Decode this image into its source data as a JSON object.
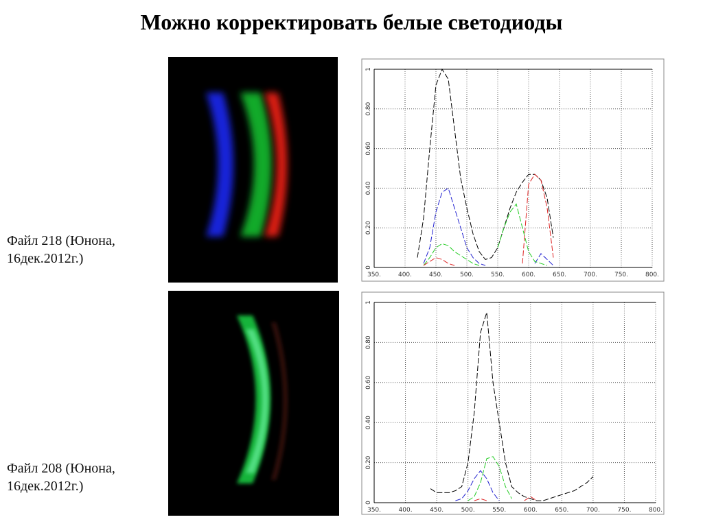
{
  "title": "Можно корректировать белые светодиоды",
  "captions": [
    [
      "Файл 218 (Юнона,",
      "16дек.2012г.)"
    ],
    [
      "Файл 208 (Юнона,",
      "16дек.2012г.)"
    ]
  ],
  "chart_data": [
    {
      "type": "line",
      "grid": true,
      "line_style": "dashed",
      "xlim": [
        350,
        800
      ],
      "ylim": [
        0,
        1
      ],
      "xticks": [
        {
          "value": 350,
          "label": "350."
        },
        {
          "value": 400,
          "label": "400."
        },
        {
          "value": 450,
          "label": "450."
        },
        {
          "value": 500,
          "label": "500."
        },
        {
          "value": 550,
          "label": "550."
        },
        {
          "value": 600,
          "label": "600."
        },
        {
          "value": 650,
          "label": "650."
        },
        {
          "value": 700,
          "label": "700."
        },
        {
          "value": 750,
          "label": "750."
        },
        {
          "value": 800,
          "label": "800."
        }
      ],
      "yticks": [
        0,
        {
          "value": 0.2,
          "label": "0.20"
        },
        {
          "value": 0.4,
          "label": "0.40"
        },
        {
          "value": 0.6,
          "label": "0.60"
        },
        {
          "value": 0.8,
          "label": "0.80"
        },
        1
      ],
      "x": [
        420,
        430,
        440,
        450,
        460,
        470,
        480,
        490,
        500,
        510,
        520,
        530,
        540,
        550,
        560,
        570,
        580,
        590,
        600,
        610,
        620,
        630,
        640
      ],
      "series": [
        {
          "color": "#000000",
          "values": [
            0.05,
            0.25,
            0.6,
            0.92,
            1.0,
            0.95,
            0.7,
            0.45,
            0.3,
            0.17,
            0.08,
            0.04,
            0.05,
            0.1,
            0.2,
            0.3,
            0.38,
            0.43,
            0.47,
            0.47,
            0.44,
            0.35,
            0.15
          ]
        },
        {
          "color": "#1f1fd0",
          "values": [
            null,
            0.02,
            0.1,
            0.28,
            0.38,
            0.4,
            0.3,
            0.2,
            0.1,
            0.05,
            0.02,
            0.01,
            null,
            null,
            null,
            null,
            null,
            null,
            null,
            0.02,
            0.07,
            0.04,
            0.01
          ]
        },
        {
          "color": "#22cc22",
          "values": [
            null,
            0.01,
            0.05,
            0.1,
            0.12,
            0.11,
            0.08,
            0.06,
            0.04,
            0.02,
            0.01,
            null,
            null,
            0.1,
            0.2,
            0.28,
            0.32,
            0.2,
            0.08,
            0.03,
            0.02,
            0.01,
            null
          ]
        },
        {
          "color": "#dd2020",
          "values": [
            null,
            0.01,
            0.03,
            0.05,
            0.04,
            0.02,
            0.01,
            null,
            null,
            null,
            null,
            null,
            null,
            null,
            null,
            null,
            null,
            0.02,
            0.42,
            0.47,
            0.44,
            0.3,
            0.05
          ]
        }
      ]
    },
    {
      "type": "line",
      "grid": true,
      "line_style": "dashed",
      "xlim": [
        350,
        800
      ],
      "ylim": [
        0,
        1
      ],
      "xticks": [
        {
          "value": 350,
          "label": "350."
        },
        {
          "value": 400,
          "label": "400."
        },
        {
          "value": 450,
          "label": "450."
        },
        {
          "value": 500,
          "label": "500."
        },
        {
          "value": 550,
          "label": "550."
        },
        {
          "value": 600,
          "label": "600."
        },
        {
          "value": 650,
          "label": "650."
        },
        {
          "value": 700,
          "label": "700."
        },
        {
          "value": 750,
          "label": "750."
        },
        {
          "value": 800,
          "label": "800."
        }
      ],
      "yticks": [
        0,
        {
          "value": 0.2,
          "label": "0.20"
        },
        {
          "value": 0.4,
          "label": "0.40"
        },
        {
          "value": 0.6,
          "label": "0.60"
        },
        {
          "value": 0.8,
          "label": "0.80"
        },
        1
      ],
      "x": [
        440,
        450,
        460,
        470,
        480,
        490,
        500,
        510,
        520,
        530,
        540,
        550,
        560,
        570,
        580,
        590,
        600,
        610,
        620,
        630,
        640,
        650,
        660,
        670,
        680,
        690,
        700
      ],
      "series": [
        {
          "color": "#000000",
          "values": [
            0.07,
            0.05,
            0.05,
            0.05,
            0.06,
            0.08,
            0.2,
            0.45,
            0.85,
            0.95,
            0.6,
            0.4,
            0.2,
            0.08,
            0.05,
            0.03,
            0.02,
            0.01,
            0.01,
            0.02,
            0.03,
            0.04,
            0.05,
            0.06,
            0.08,
            0.1,
            0.13
          ]
        },
        {
          "color": "#1f1fd0",
          "values": [
            null,
            null,
            null,
            null,
            0.01,
            0.02,
            0.06,
            0.12,
            0.16,
            0.12,
            0.05,
            0.01,
            null,
            null,
            null,
            null,
            null,
            null,
            null,
            null,
            null,
            null,
            null,
            null,
            null,
            null,
            null
          ]
        },
        {
          "color": "#22cc22",
          "values": [
            null,
            null,
            null,
            null,
            null,
            null,
            0.01,
            0.03,
            0.1,
            0.22,
            0.23,
            0.18,
            0.08,
            0.02,
            null,
            null,
            null,
            null,
            null,
            null,
            null,
            null,
            null,
            null,
            null,
            null,
            null
          ]
        },
        {
          "color": "#dd2020",
          "values": [
            null,
            null,
            null,
            null,
            null,
            null,
            null,
            0.01,
            0.02,
            0.01,
            null,
            null,
            null,
            null,
            null,
            0.01,
            0.03,
            0.01,
            null,
            null,
            null,
            null,
            null,
            null,
            null,
            null,
            null
          ]
        }
      ]
    }
  ]
}
